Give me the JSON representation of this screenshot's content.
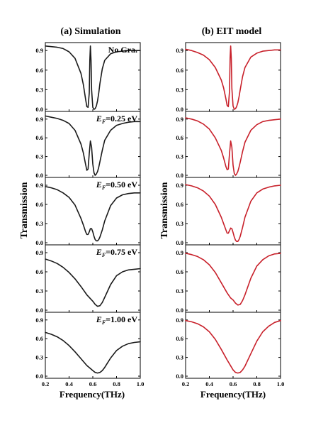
{
  "chart_data": [
    {
      "type": "line",
      "title": "(a) Simulation",
      "xlabel": "Frequency(THz)",
      "ylabel": "Transmission",
      "line_color": "#1a1a1a",
      "xlim": [
        0.2,
        1.0
      ],
      "xticks": [
        "0.2",
        "0.4",
        "0.6",
        "0.8",
        "1.0"
      ],
      "panels": [
        {
          "label": "No Gra.",
          "ylim": [
            0,
            1.0
          ],
          "yticks": [
            "0.0",
            "0.3",
            "0.6",
            "0.9"
          ],
          "x": [
            0.2,
            0.25,
            0.3,
            0.35,
            0.4,
            0.45,
            0.5,
            0.52,
            0.54,
            0.55,
            0.56,
            0.57,
            0.575,
            0.58,
            0.585,
            0.59,
            0.6,
            0.61,
            0.62,
            0.63,
            0.64,
            0.65,
            0.66,
            0.68,
            0.7,
            0.75,
            0.8,
            0.85,
            0.9,
            0.95,
            1.0
          ],
          "y": [
            0.97,
            0.96,
            0.95,
            0.93,
            0.88,
            0.78,
            0.55,
            0.38,
            0.15,
            0.04,
            0.03,
            0.25,
            0.75,
            0.97,
            0.75,
            0.3,
            0.03,
            0.0,
            0.01,
            0.05,
            0.13,
            0.25,
            0.4,
            0.62,
            0.75,
            0.85,
            0.88,
            0.89,
            0.9,
            0.9,
            0.9
          ]
        },
        {
          "label": "E",
          "label_sub": "F",
          "label_suffix": "=0.25 eV",
          "ylim": [
            0,
            1.0
          ],
          "yticks": [
            "0.0",
            "0.3",
            "0.6",
            "0.9"
          ],
          "x": [
            0.2,
            0.25,
            0.3,
            0.35,
            0.4,
            0.45,
            0.5,
            0.52,
            0.54,
            0.55,
            0.56,
            0.57,
            0.58,
            0.59,
            0.6,
            0.61,
            0.62,
            0.63,
            0.64,
            0.65,
            0.66,
            0.68,
            0.7,
            0.75,
            0.8,
            0.85,
            0.9,
            0.95,
            1.0
          ],
          "y": [
            0.95,
            0.93,
            0.91,
            0.88,
            0.83,
            0.72,
            0.5,
            0.36,
            0.17,
            0.08,
            0.1,
            0.35,
            0.55,
            0.45,
            0.18,
            0.04,
            0.0,
            0.02,
            0.06,
            0.13,
            0.22,
            0.4,
            0.56,
            0.72,
            0.8,
            0.83,
            0.85,
            0.86,
            0.86
          ]
        },
        {
          "label": "E",
          "label_sub": "F",
          "label_suffix": "=0.50 eV",
          "ylim": [
            0,
            1.0
          ],
          "yticks": [
            "0.0",
            "0.3",
            "0.6",
            "0.9"
          ],
          "x": [
            0.2,
            0.25,
            0.3,
            0.35,
            0.4,
            0.45,
            0.5,
            0.52,
            0.54,
            0.55,
            0.56,
            0.57,
            0.58,
            0.59,
            0.6,
            0.61,
            0.62,
            0.63,
            0.64,
            0.65,
            0.66,
            0.68,
            0.7,
            0.75,
            0.8,
            0.85,
            0.9,
            0.95,
            1.0
          ],
          "y": [
            0.88,
            0.86,
            0.83,
            0.78,
            0.71,
            0.59,
            0.38,
            0.28,
            0.17,
            0.13,
            0.13,
            0.17,
            0.22,
            0.22,
            0.17,
            0.1,
            0.05,
            0.03,
            0.03,
            0.05,
            0.09,
            0.2,
            0.34,
            0.58,
            0.7,
            0.75,
            0.77,
            0.78,
            0.78
          ]
        },
        {
          "label": "E",
          "label_sub": "F",
          "label_suffix": "=0.75 eV",
          "ylim": [
            0,
            1.0
          ],
          "yticks": [
            "0.0",
            "0.3",
            "0.6",
            "0.9"
          ],
          "x": [
            0.2,
            0.25,
            0.3,
            0.35,
            0.4,
            0.45,
            0.5,
            0.55,
            0.58,
            0.6,
            0.62,
            0.64,
            0.66,
            0.68,
            0.7,
            0.75,
            0.8,
            0.85,
            0.9,
            0.95,
            1.0
          ],
          "y": [
            0.8,
            0.77,
            0.73,
            0.67,
            0.59,
            0.49,
            0.37,
            0.24,
            0.18,
            0.14,
            0.09,
            0.06,
            0.07,
            0.12,
            0.2,
            0.4,
            0.54,
            0.6,
            0.63,
            0.64,
            0.65
          ]
        },
        {
          "label": "E",
          "label_sub": "F",
          "label_suffix": "=1.00 eV",
          "ylim": [
            0,
            1.0
          ],
          "yticks": [
            "0.0",
            "0.3",
            "0.6",
            "0.9"
          ],
          "x": [
            0.2,
            0.25,
            0.3,
            0.35,
            0.4,
            0.45,
            0.5,
            0.55,
            0.6,
            0.62,
            0.64,
            0.66,
            0.68,
            0.7,
            0.75,
            0.8,
            0.85,
            0.9,
            0.95,
            1.0
          ],
          "y": [
            0.7,
            0.67,
            0.63,
            0.57,
            0.49,
            0.39,
            0.28,
            0.17,
            0.09,
            0.06,
            0.05,
            0.06,
            0.09,
            0.14,
            0.29,
            0.41,
            0.48,
            0.52,
            0.54,
            0.55
          ]
        }
      ]
    },
    {
      "type": "line",
      "title": "(b) EIT model",
      "xlabel": "Frequency(THz)",
      "ylabel": "Transmission",
      "line_color": "#c8202a",
      "xlim": [
        0.2,
        1.0
      ],
      "xticks": [
        "0.2",
        "0.4",
        "0.6",
        "0.8",
        "1.0"
      ],
      "panels": [
        {
          "ylim": [
            0,
            1.0
          ],
          "yticks": [
            "0.0",
            "0.3",
            "0.6",
            "0.9"
          ],
          "x": [
            0.2,
            0.25,
            0.3,
            0.35,
            0.4,
            0.45,
            0.5,
            0.52,
            0.54,
            0.55,
            0.56,
            0.57,
            0.575,
            0.58,
            0.585,
            0.59,
            0.6,
            0.61,
            0.62,
            0.63,
            0.64,
            0.65,
            0.66,
            0.68,
            0.7,
            0.75,
            0.8,
            0.85,
            0.9,
            0.95,
            1.0
          ],
          "y": [
            0.92,
            0.9,
            0.87,
            0.83,
            0.76,
            0.64,
            0.45,
            0.33,
            0.16,
            0.06,
            0.04,
            0.28,
            0.78,
            0.97,
            0.78,
            0.32,
            0.05,
            0.0,
            0.01,
            0.04,
            0.1,
            0.19,
            0.3,
            0.5,
            0.64,
            0.8,
            0.86,
            0.89,
            0.9,
            0.91,
            0.91
          ]
        },
        {
          "ylim": [
            0,
            1.0
          ],
          "yticks": [
            "0.0",
            "0.3",
            "0.6",
            "0.9"
          ],
          "x": [
            0.2,
            0.25,
            0.3,
            0.35,
            0.4,
            0.45,
            0.5,
            0.52,
            0.54,
            0.55,
            0.56,
            0.57,
            0.58,
            0.59,
            0.6,
            0.61,
            0.62,
            0.63,
            0.64,
            0.65,
            0.66,
            0.68,
            0.7,
            0.75,
            0.8,
            0.85,
            0.9,
            0.95,
            1.0
          ],
          "y": [
            0.92,
            0.9,
            0.87,
            0.82,
            0.74,
            0.6,
            0.4,
            0.28,
            0.14,
            0.09,
            0.1,
            0.35,
            0.55,
            0.45,
            0.16,
            0.03,
            0.0,
            0.02,
            0.06,
            0.13,
            0.21,
            0.38,
            0.53,
            0.72,
            0.81,
            0.86,
            0.88,
            0.89,
            0.9
          ]
        },
        {
          "ylim": [
            0,
            1.0
          ],
          "yticks": [
            "0.0",
            "0.3",
            "0.6",
            "0.9"
          ],
          "x": [
            0.2,
            0.25,
            0.3,
            0.35,
            0.4,
            0.45,
            0.5,
            0.52,
            0.54,
            0.55,
            0.56,
            0.57,
            0.58,
            0.59,
            0.6,
            0.61,
            0.62,
            0.63,
            0.64,
            0.65,
            0.66,
            0.68,
            0.7,
            0.75,
            0.8,
            0.85,
            0.9,
            0.95,
            1.0
          ],
          "y": [
            0.91,
            0.89,
            0.86,
            0.81,
            0.73,
            0.6,
            0.4,
            0.3,
            0.2,
            0.15,
            0.15,
            0.19,
            0.23,
            0.22,
            0.16,
            0.09,
            0.04,
            0.02,
            0.02,
            0.05,
            0.1,
            0.24,
            0.4,
            0.65,
            0.78,
            0.84,
            0.87,
            0.89,
            0.9
          ]
        },
        {
          "ylim": [
            0,
            1.0
          ],
          "yticks": [
            "0.0",
            "0.3",
            "0.6",
            "0.9"
          ],
          "x": [
            0.2,
            0.25,
            0.3,
            0.35,
            0.4,
            0.45,
            0.5,
            0.55,
            0.58,
            0.6,
            0.62,
            0.64,
            0.66,
            0.68,
            0.7,
            0.75,
            0.8,
            0.85,
            0.9,
            0.95,
            1.0
          ],
          "y": [
            0.89,
            0.87,
            0.84,
            0.79,
            0.71,
            0.59,
            0.43,
            0.27,
            0.19,
            0.16,
            0.11,
            0.08,
            0.09,
            0.15,
            0.24,
            0.5,
            0.69,
            0.79,
            0.85,
            0.88,
            0.89
          ]
        },
        {
          "ylim": [
            0,
            1.0
          ],
          "yticks": [
            "0.0",
            "0.3",
            "0.6",
            "0.9"
          ],
          "x": [
            0.2,
            0.25,
            0.3,
            0.35,
            0.4,
            0.45,
            0.5,
            0.55,
            0.6,
            0.62,
            0.64,
            0.66,
            0.68,
            0.7,
            0.75,
            0.8,
            0.85,
            0.9,
            0.95,
            1.0
          ],
          "y": [
            0.89,
            0.87,
            0.84,
            0.79,
            0.71,
            0.59,
            0.43,
            0.26,
            0.1,
            0.06,
            0.05,
            0.06,
            0.1,
            0.16,
            0.36,
            0.56,
            0.71,
            0.8,
            0.86,
            0.89
          ]
        }
      ]
    }
  ]
}
